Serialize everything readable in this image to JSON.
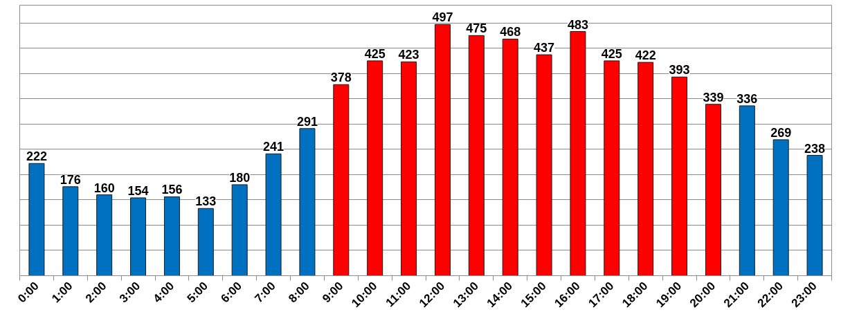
{
  "chart_data": {
    "type": "bar",
    "categories": [
      "0:00",
      "1:00",
      "2:00",
      "3:00",
      "4:00",
      "5:00",
      "6:00",
      "7:00",
      "8:00",
      "9:00",
      "10:00",
      "11:00",
      "12:00",
      "13:00",
      "14:00",
      "15:00",
      "16:00",
      "17:00",
      "18:00",
      "19:00",
      "20:00",
      "21:00",
      "22:00",
      "23:00"
    ],
    "values": [
      222,
      176,
      160,
      154,
      156,
      133,
      180,
      241,
      291,
      378,
      425,
      423,
      497,
      475,
      468,
      437,
      483,
      425,
      422,
      393,
      339,
      336,
      269,
      238
    ],
    "colors": [
      "#0070c0",
      "#0070c0",
      "#0070c0",
      "#0070c0",
      "#0070c0",
      "#0070c0",
      "#0070c0",
      "#0070c0",
      "#0070c0",
      "#ff0000",
      "#ff0000",
      "#ff0000",
      "#ff0000",
      "#ff0000",
      "#ff0000",
      "#ff0000",
      "#ff0000",
      "#ff0000",
      "#ff0000",
      "#ff0000",
      "#ff0000",
      "#0070c0",
      "#0070c0",
      "#0070c0"
    ],
    "ylim": [
      0,
      535
    ],
    "yticks": [
      {
        "value": 50,
        "label": null
      },
      {
        "value": 100,
        "label": null
      },
      {
        "value": 150,
        "label": null
      },
      {
        "value": 200,
        "label": null
      },
      {
        "value": 250,
        "label": null
      },
      {
        "value": 300,
        "label": null
      },
      {
        "value": 350,
        "label": null
      },
      {
        "value": 400,
        "label": null
      },
      {
        "value": 450,
        "label": null
      },
      {
        "value": 500,
        "label": null
      }
    ],
    "grid": "y",
    "tick_labels": "x",
    "data_labels": true
  }
}
